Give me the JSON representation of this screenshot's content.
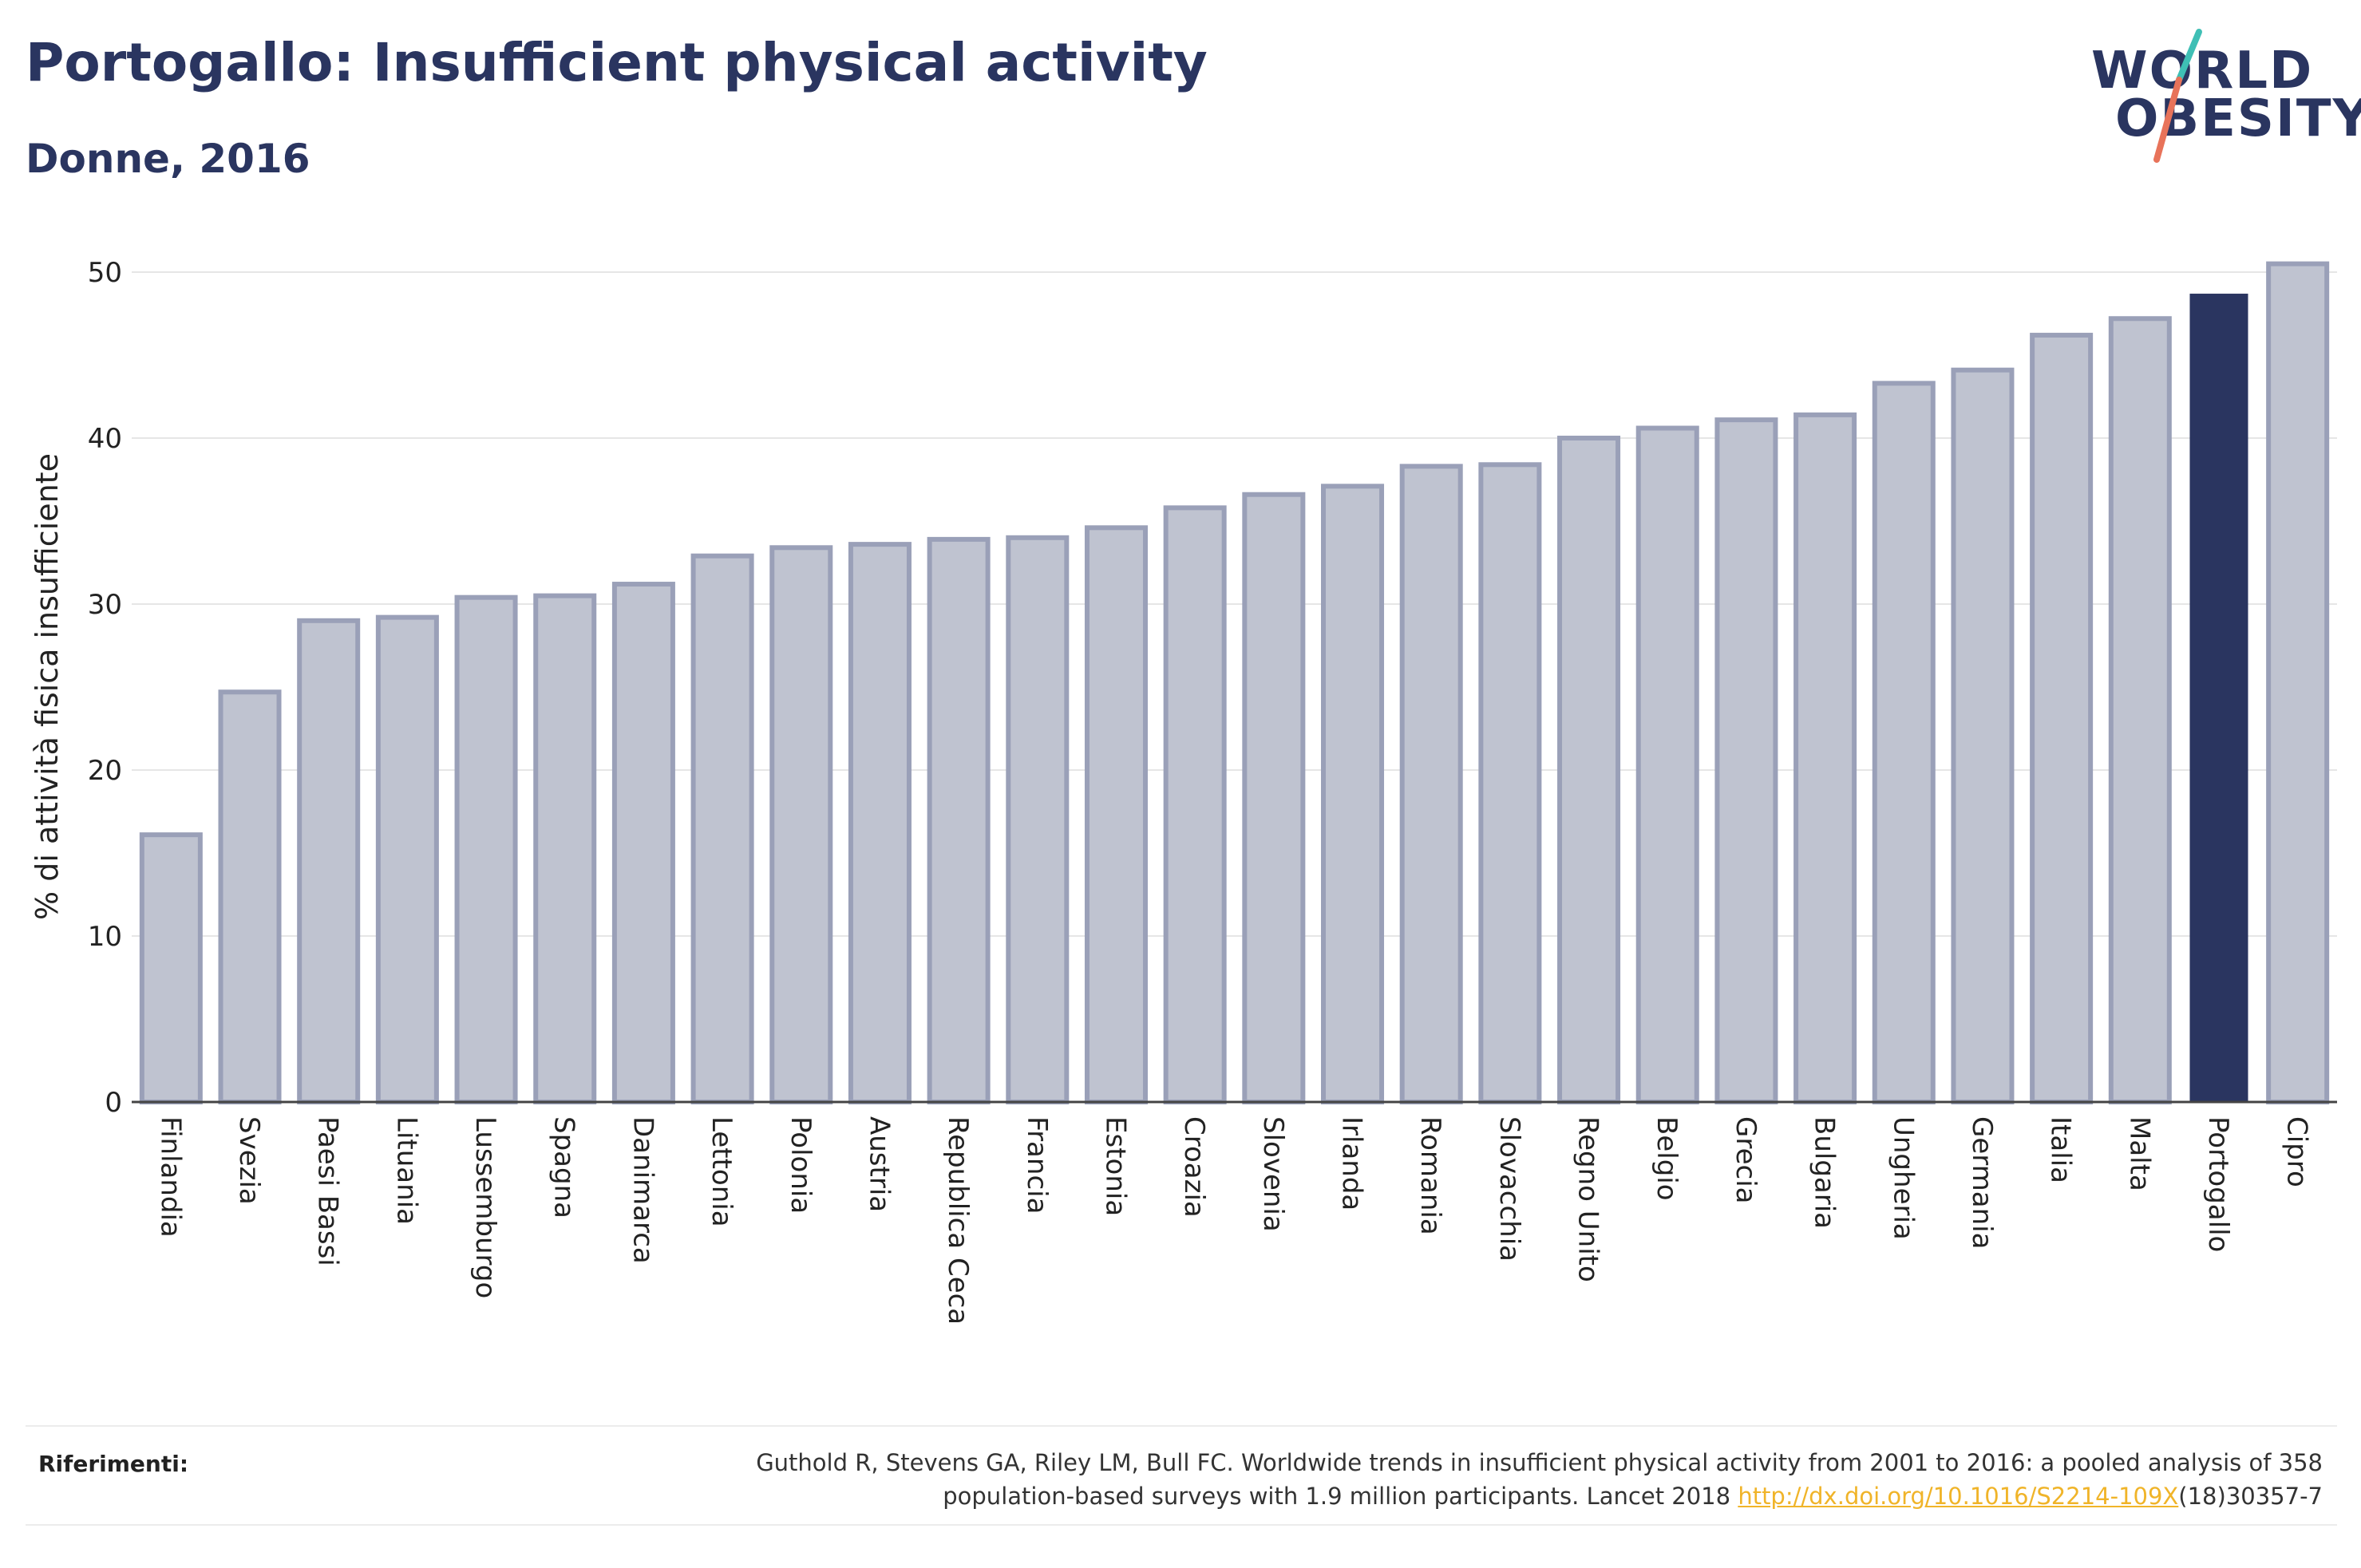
{
  "header": {
    "title": "Portogallo: Insufficient physical activity",
    "subtitle": "Donne, 2016"
  },
  "logo": {
    "line1": "WORLD",
    "line2": "OBESITY",
    "accent_top": "#3fbfb5",
    "accent_bottom": "#e8735a"
  },
  "chart_data": {
    "type": "bar",
    "ylabel": "% di attività fisica insufficiente",
    "xlabel": "",
    "ylim": [
      0,
      50
    ],
    "yticks": [
      0,
      10,
      20,
      30,
      40,
      50
    ],
    "grid": true,
    "highlight": "Portogallo",
    "colors": {
      "bar": "#bfc3d0",
      "bar_border": "#9aa0b8",
      "highlight": "#2a3560"
    },
    "categories": [
      "Finlandia",
      "Svezia",
      "Paesi Bassi",
      "Lituania",
      "Lussemburgo",
      "Spagna",
      "Danimarca",
      "Lettonia",
      "Polonia",
      "Austria",
      "Republica Ceca",
      "Francia",
      "Estonia",
      "Croazia",
      "Slovenia",
      "Irlanda",
      "Romania",
      "Slovacchia",
      "Regno Unito",
      "Belgio",
      "Grecia",
      "Bulgaria",
      "Ungheria",
      "Germania",
      "Italia",
      "Malta",
      "Portogallo",
      "Cipro"
    ],
    "values": [
      16.1,
      24.7,
      29.0,
      29.2,
      30.4,
      30.5,
      31.2,
      32.9,
      33.4,
      33.6,
      33.9,
      34.0,
      34.6,
      35.8,
      36.6,
      37.1,
      38.3,
      38.4,
      40.0,
      40.6,
      41.1,
      41.4,
      43.3,
      44.1,
      46.2,
      47.2,
      48.7,
      50.5
    ]
  },
  "references": {
    "label": "Riferimenti:",
    "text_line1": "Guthold R, Stevens GA, Riley LM, Bull FC. Worldwide trends in insufficient physical activity from 2001 to 2016: a pooled analysis of 358",
    "text_line2_before": "population-based surveys with 1.9 million participants. Lancet 2018 ",
    "link": "http://dx.doi.org/10.1016/S2214-109X",
    "text_line2_after": "(18)30357-7"
  }
}
